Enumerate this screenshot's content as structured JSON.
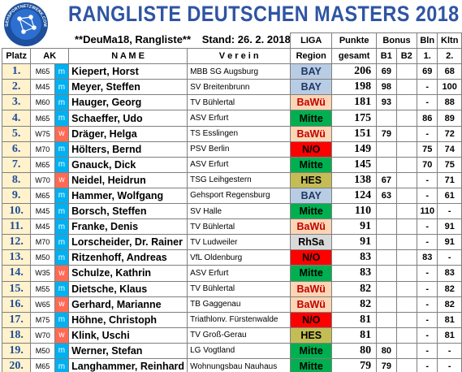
{
  "title": "RANGLISTE DEUTSCHEN MASTERS 2018",
  "logo_text": "GEHSPORTNETZWERK.COM",
  "subtitle": {
    "tag": "**DeuMa18, Rangliste**",
    "stand": "Stand: 26. 2. 2018"
  },
  "headers": {
    "platz": "Platz",
    "ak": "AK",
    "name": "N A M E",
    "verein": "V e r e i n",
    "liga": "LIGA",
    "region": "Region",
    "punkte": "Punkte",
    "gesamt": "gesamt",
    "bonus": "Bonus",
    "b1": "B1",
    "b2": "B2",
    "bln": "Bln",
    "bln_sub": "1.",
    "kltn": "Kltn",
    "kltn_sub": "2."
  },
  "region_colors": {
    "BAY": "#b8cce4",
    "BaWü": "#fcd5b4",
    "Mitte": "#00b050",
    "N/O": "#ff0000",
    "HES": "#c4bd56",
    "RhSa": "#d9d9d9"
  },
  "region_text_colors": {
    "BAY": "#1f3864",
    "BaWü": "#c00000",
    "Mitte": "#000000",
    "N/O": "#000000",
    "HES": "#000000",
    "RhSa": "#000000"
  },
  "rows": [
    {
      "platz": "1.",
      "ak": "M65",
      "g": "m",
      "name": "Kiepert, Horst",
      "verein": "MBB SG Augsburg",
      "region": "BAY",
      "punkte": "206",
      "b1": "69",
      "b2": "",
      "bln": "69",
      "kltn": "68"
    },
    {
      "platz": "2.",
      "ak": "M45",
      "g": "m",
      "name": "Meyer, Steffen",
      "verein": "SV Breitenbrunn",
      "region": "BAY",
      "punkte": "198",
      "b1": "98",
      "b2": "",
      "bln": "-",
      "kltn": "100"
    },
    {
      "platz": "3.",
      "ak": "M60",
      "g": "m",
      "name": "Hauger, Georg",
      "verein": "TV Bühlertal",
      "region": "BaWü",
      "punkte": "181",
      "b1": "93",
      "b2": "",
      "bln": "-",
      "kltn": "88"
    },
    {
      "platz": "4.",
      "ak": "M65",
      "g": "m",
      "name": "Schaeffer, Udo",
      "verein": "ASV Erfurt",
      "region": "Mitte",
      "punkte": "175",
      "b1": "",
      "b2": "",
      "bln": "86",
      "kltn": "89"
    },
    {
      "platz": "5.",
      "ak": "W75",
      "g": "w",
      "name": "Dräger, Helga",
      "verein": "TS Esslingen",
      "region": "BaWü",
      "punkte": "151",
      "b1": "79",
      "b2": "",
      "bln": "-",
      "kltn": "72"
    },
    {
      "platz": "6.",
      "ak": "M70",
      "g": "m",
      "name": "Hölters, Bernd",
      "verein": "PSV Berlin",
      "region": "N/O",
      "punkte": "149",
      "b1": "",
      "b2": "",
      "bln": "75",
      "kltn": "74"
    },
    {
      "platz": "7.",
      "ak": "M65",
      "g": "m",
      "name": "Gnauck, Dick",
      "verein": "ASV Erfurt",
      "region": "Mitte",
      "punkte": "145",
      "b1": "",
      "b2": "",
      "bln": "70",
      "kltn": "75"
    },
    {
      "platz": "8.",
      "ak": "W70",
      "g": "w",
      "name": "Neidel, Heidrun",
      "verein": "TSG Leihgestern",
      "region": "HES",
      "punkte": "138",
      "b1": "67",
      "b2": "",
      "bln": "-",
      "kltn": "71"
    },
    {
      "platz": "9.",
      "ak": "M65",
      "g": "m",
      "name": "Hammer, Wolfgang",
      "verein": "Gehsport Regensburg",
      "region": "BAY",
      "punkte": "124",
      "b1": "63",
      "b2": "",
      "bln": "-",
      "kltn": "61"
    },
    {
      "platz": "10.",
      "ak": "M45",
      "g": "m",
      "name": "Borsch, Steffen",
      "verein": "SV Halle",
      "region": "Mitte",
      "punkte": "110",
      "b1": "",
      "b2": "",
      "bln": "110",
      "kltn": "-"
    },
    {
      "platz": "11.",
      "ak": "M45",
      "g": "m",
      "name": "Franke, Denis",
      "verein": "TV Bühlertal",
      "region": "BaWü",
      "punkte": "91",
      "b1": "",
      "b2": "",
      "bln": "-",
      "kltn": "91"
    },
    {
      "platz": "12.",
      "ak": "M70",
      "g": "m",
      "name": "Lorscheider, Dr. Rainer",
      "verein": "TV Ludweiler",
      "region": "RhSa",
      "punkte": "91",
      "b1": "",
      "b2": "",
      "bln": "-",
      "kltn": "91"
    },
    {
      "platz": "13.",
      "ak": "M50",
      "g": "m",
      "name": "Ritzenhoff, Andreas",
      "verein": "VfL Oldenburg",
      "region": "N/O",
      "punkte": "83",
      "b1": "",
      "b2": "",
      "bln": "83",
      "kltn": "-"
    },
    {
      "platz": "14.",
      "ak": "W35",
      "g": "w",
      "name": "Schulze, Kathrin",
      "verein": "ASV Erfurt",
      "region": "Mitte",
      "punkte": "83",
      "b1": "",
      "b2": "",
      "bln": "-",
      "kltn": "83"
    },
    {
      "platz": "15.",
      "ak": "M55",
      "g": "m",
      "name": "Dietsche, Klaus",
      "verein": "TV Bühlertal",
      "region": "BaWü",
      "punkte": "82",
      "b1": "",
      "b2": "",
      "bln": "-",
      "kltn": "82"
    },
    {
      "platz": "16.",
      "ak": "W65",
      "g": "w",
      "name": "Gerhard, Marianne",
      "verein": "TB Gaggenau",
      "region": "BaWü",
      "punkte": "82",
      "b1": "",
      "b2": "",
      "bln": "-",
      "kltn": "82"
    },
    {
      "platz": "17.",
      "ak": "M75",
      "g": "m",
      "name": "Höhne, Christoph",
      "verein": "Triathlonv. Fürstenwalde",
      "region": "N/O",
      "punkte": "81",
      "b1": "",
      "b2": "",
      "bln": "-",
      "kltn": "81"
    },
    {
      "platz": "18.",
      "ak": "W70",
      "g": "w",
      "name": "Klink, Uschi",
      "verein": "TV Groß-Gerau",
      "region": "HES",
      "punkte": "81",
      "b1": "",
      "b2": "",
      "bln": "-",
      "kltn": "81"
    },
    {
      "platz": "19.",
      "ak": "M50",
      "g": "m",
      "name": "Werner, Stefan",
      "verein": "LG Vogtland",
      "region": "Mitte",
      "punkte": "80",
      "b1": "80",
      "b2": "",
      "bln": "-",
      "kltn": "-"
    },
    {
      "platz": "20.",
      "ak": "M65",
      "g": "m",
      "name": "Langhammer, Reinhard",
      "verein": "Wohnungsbau Nauhaus",
      "region": "Mitte",
      "punkte": "79",
      "b1": "79",
      "b2": "",
      "bln": "-",
      "kltn": "-"
    }
  ]
}
